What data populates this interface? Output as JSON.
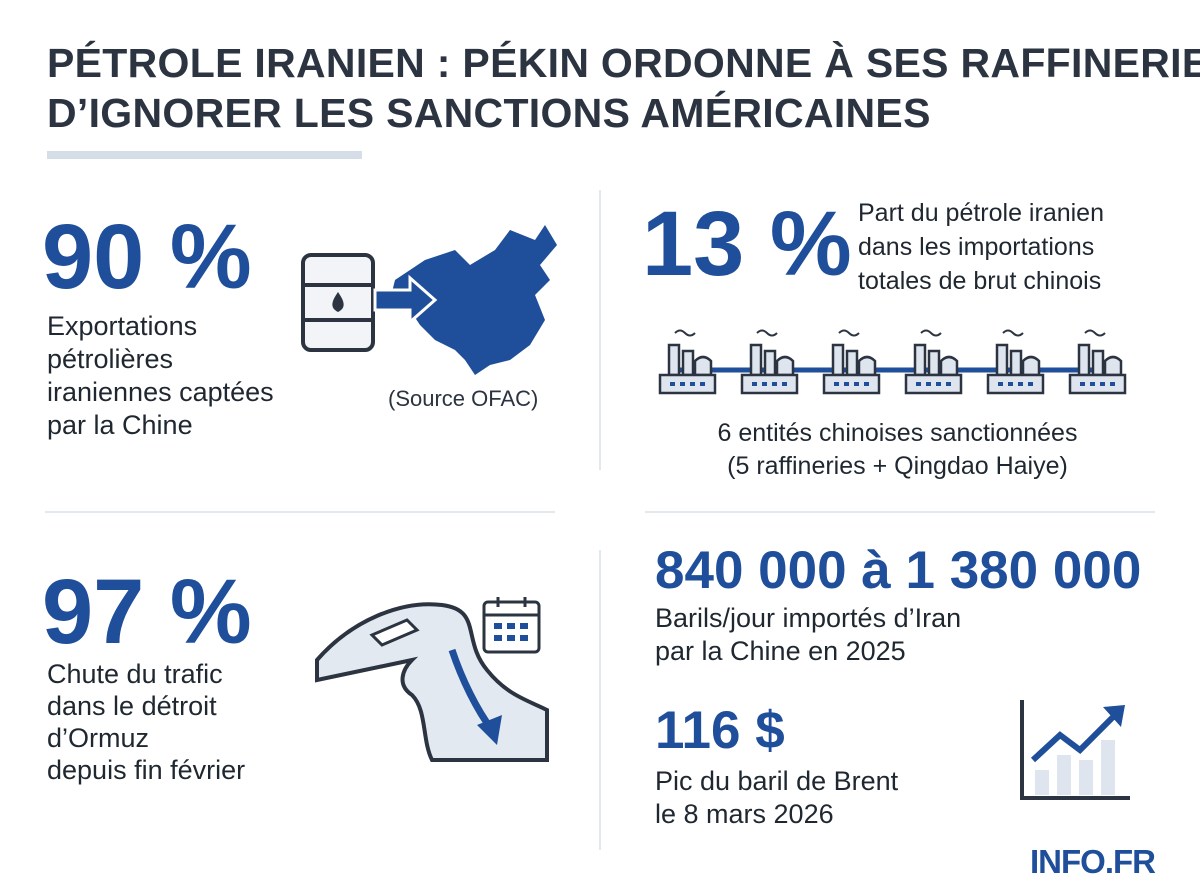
{
  "header": {
    "title_lines": [
      "PÉTROLE IRANIEN : PÉKIN ORDONNE À SES RAFFINERIES",
      "D’IGNORER LES SANCTIONS AMÉRICAINES"
    ]
  },
  "blocks": [
    {
      "value": "90 %",
      "lines": [
        "Exportations",
        "pétrolières",
        "iraniennes captées",
        "par la Chine"
      ],
      "source": "(Source OFAC)"
    },
    {
      "value": "13 %",
      "lines": [
        "Part du pétrole iranien",
        "dans les importations",
        "totales de brut chinois"
      ],
      "note_lines": [
        "6 entités chinoises sanctionnées",
        "(5 raffineries + Qingdao Haiye)"
      ]
    },
    {
      "value": "97 %",
      "lines": [
        "Chute du trafic",
        "dans le détroit",
        "d’Ormuz",
        "depuis fin février"
      ]
    },
    {
      "value": "840 000 à 1 380 000",
      "lines": [
        "Barils/jour importés d’Iran",
        "par la Chine en 2025"
      ]
    },
    {
      "value": "116 $",
      "lines": [
        "Pic du baril de Brent",
        "le 8 mars 2026"
      ]
    }
  ],
  "footer": {
    "brand": "INFO.FR"
  }
}
